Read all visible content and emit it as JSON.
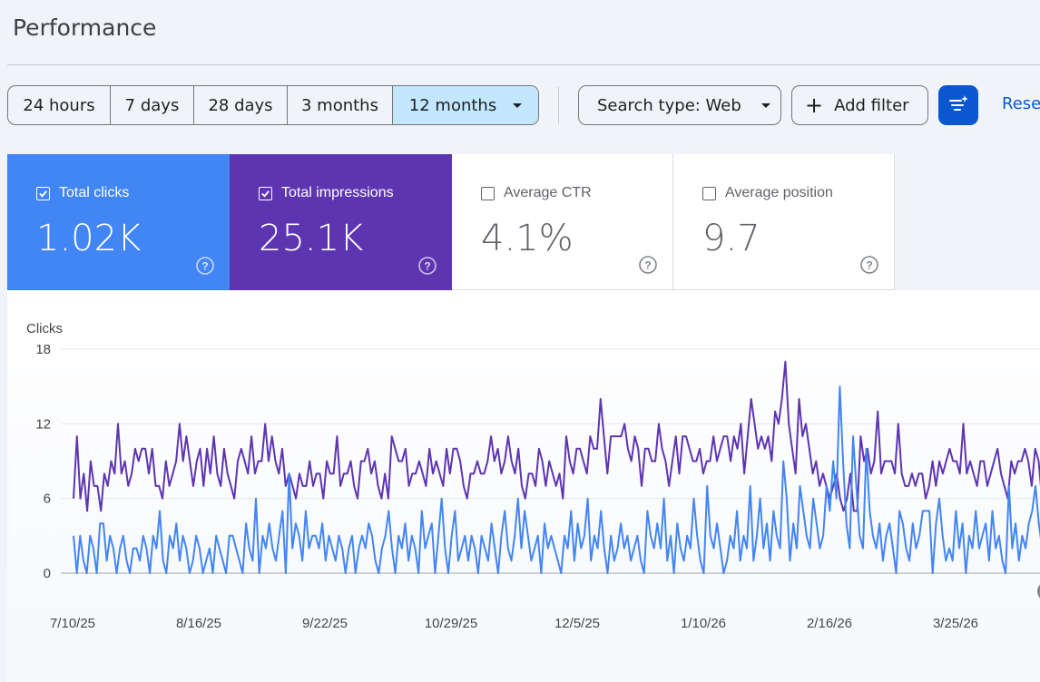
{
  "header": {
    "title": "Performance"
  },
  "date_ranges": [
    {
      "label": "24 hours",
      "selected": false
    },
    {
      "label": "7 days",
      "selected": false
    },
    {
      "label": "28 days",
      "selected": false
    },
    {
      "label": "3 months",
      "selected": false
    },
    {
      "label": "12 months",
      "selected": true
    }
  ],
  "toolbar": {
    "search_type": "Search type: Web",
    "add_filter": "Add filter",
    "reset": "Reset"
  },
  "metrics": [
    {
      "label": "Total clicks",
      "value": "1.02K",
      "checked": true,
      "color": "#4285f4"
    },
    {
      "label": "Total impressions",
      "value": "25.1K",
      "checked": true,
      "color": "#5e35b1"
    },
    {
      "label": "Average CTR",
      "value": "4.1%",
      "checked": false
    },
    {
      "label": "Average position",
      "value": "9.7",
      "checked": false
    }
  ],
  "chart_data": {
    "type": "line",
    "ylabel": "Clicks",
    "ylim": [
      0,
      18
    ],
    "yticks": [
      0,
      6,
      12,
      18
    ],
    "xtick_labels": [
      "7/10/25",
      "8/16/25",
      "9/22/25",
      "10/29/25",
      "12/5/25",
      "1/10/26",
      "2/16/26",
      "3/25/26"
    ],
    "grid": true,
    "series": [
      {
        "name": "Total clicks",
        "color": "#4285f4",
        "values": [
          3,
          0,
          3,
          1,
          0,
          3,
          2,
          0,
          4,
          4,
          1,
          3,
          2,
          0,
          2,
          3,
          1,
          0,
          2,
          2,
          1,
          3,
          2,
          0,
          3,
          2,
          5,
          1,
          0,
          3,
          2,
          4,
          1,
          3,
          2,
          0,
          1,
          3,
          2,
          0,
          1,
          2,
          0,
          3,
          2,
          1,
          0,
          3,
          3,
          2,
          1,
          0,
          4,
          2,
          1,
          6,
          0,
          3,
          2,
          4,
          2,
          1,
          3,
          5,
          0,
          8,
          2,
          4,
          3,
          1,
          5,
          2,
          3,
          3,
          2,
          4,
          1,
          3,
          2,
          1,
          3,
          2,
          0,
          2,
          3,
          0,
          2,
          3,
          2,
          4,
          3,
          1,
          0,
          2,
          3,
          5,
          2,
          0,
          3,
          2,
          4,
          1,
          3,
          2,
          0,
          5,
          2,
          3,
          4,
          0,
          3,
          6,
          2,
          0,
          3,
          5,
          1,
          2,
          3,
          1,
          3,
          2,
          0,
          3,
          2,
          1,
          4,
          2,
          0,
          3,
          5,
          2,
          1,
          3,
          6,
          2,
          5,
          3,
          1,
          2,
          3,
          0,
          4,
          2,
          3,
          2,
          1,
          0,
          3,
          2,
          5,
          1,
          4,
          2,
          3,
          6,
          1,
          3,
          2,
          5,
          2,
          0,
          3,
          1,
          2,
          4,
          2,
          3,
          1,
          2,
          3,
          1,
          0,
          5,
          3,
          2,
          4,
          2,
          6,
          1,
          3,
          0,
          4,
          2,
          1,
          3,
          2,
          6,
          3,
          1,
          0,
          7,
          3,
          2,
          4,
          2,
          0,
          1,
          3,
          2,
          5,
          1,
          3,
          2,
          7,
          1,
          3,
          6,
          2,
          4,
          1,
          5,
          3,
          2,
          9,
          6,
          1,
          4,
          2,
          7,
          5,
          3,
          2,
          6,
          4,
          2,
          3,
          7,
          5,
          9,
          6,
          15,
          9,
          4,
          2,
          11,
          7,
          3,
          2,
          10,
          5,
          3,
          2,
          4,
          1,
          3,
          4,
          2,
          0,
          5,
          4,
          2,
          1,
          4,
          2,
          3,
          5,
          5,
          5,
          0,
          4,
          6,
          3,
          1,
          2,
          1,
          5,
          2,
          4,
          0,
          3,
          2,
          5,
          2,
          3,
          4,
          1,
          5,
          2,
          3,
          1,
          0,
          7,
          2,
          4,
          1,
          3,
          2,
          4,
          5,
          7,
          4,
          2,
          0
        ]
      },
      {
        "name": "Total impressions",
        "color": "#5e35b1",
        "values": [
          6,
          11,
          6,
          8,
          5,
          9,
          7,
          7,
          5,
          8,
          7,
          9,
          8,
          12,
          8,
          9,
          7,
          8,
          10,
          9,
          10,
          10,
          8,
          10,
          7,
          7,
          6,
          9,
          7,
          8,
          9,
          12,
          9,
          11,
          9,
          7,
          9,
          10,
          7,
          10,
          8,
          11,
          8,
          7,
          10,
          8,
          7,
          6,
          9,
          10,
          9,
          8,
          11,
          8,
          9,
          9,
          12,
          9,
          11,
          9,
          8,
          10,
          7,
          8,
          7,
          6,
          8,
          7,
          7,
          9,
          7,
          8,
          8,
          6,
          9,
          8,
          8,
          11,
          7,
          8,
          8,
          9,
          7,
          6,
          9,
          9,
          10,
          8,
          9,
          7,
          6,
          8,
          6,
          11,
          10,
          9,
          9,
          10,
          7,
          8,
          8,
          9,
          8,
          7,
          10,
          8,
          9,
          8,
          7,
          10,
          8,
          10,
          10,
          9,
          7,
          6,
          8,
          8,
          9,
          8,
          8,
          9,
          11,
          9,
          10,
          8,
          9,
          11,
          9,
          8,
          10,
          7,
          6,
          8,
          8,
          7,
          10,
          9,
          7,
          9,
          8,
          7,
          8,
          6,
          11,
          9,
          8,
          10,
          10,
          9,
          8,
          11,
          10,
          10,
          14,
          11,
          8,
          11,
          11,
          11,
          11,
          12,
          10,
          9,
          11,
          10,
          7,
          10,
          10,
          9,
          9,
          12,
          10,
          9,
          7,
          9,
          11,
          8,
          11,
          11,
          10,
          9,
          9,
          10,
          8,
          9,
          9,
          11,
          9,
          10,
          11,
          11,
          9,
          11,
          10,
          12,
          8,
          11,
          14,
          12,
          10,
          11,
          10,
          11,
          9,
          13,
          12,
          14,
          17,
          12,
          10,
          8,
          14,
          11,
          12,
          10,
          8,
          9,
          7,
          8,
          7,
          6,
          7,
          8,
          6,
          5,
          6,
          8,
          5,
          5,
          11,
          9,
          10,
          8,
          9,
          13,
          8,
          9,
          9,
          9,
          8,
          12,
          8,
          7,
          7,
          8,
          7,
          8,
          8,
          6,
          7,
          9,
          7,
          9,
          8,
          9,
          10,
          9,
          9,
          8,
          12,
          8,
          9,
          8,
          7,
          9,
          9,
          7,
          8,
          9,
          10,
          8,
          7,
          6,
          9,
          8,
          9,
          9,
          10,
          9,
          7,
          10,
          9,
          6,
          7
        ]
      }
    ]
  }
}
